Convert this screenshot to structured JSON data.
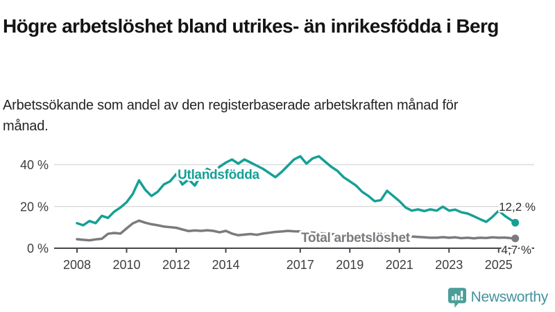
{
  "header": {
    "title": "Högre arbetslöshet bland utrikes- än inrikesfödda i Berg",
    "subtitle": "Arbetssökande som andel av den registerbaserade arbetskraften månad för månad."
  },
  "footer": {
    "brand": "Newsworthy",
    "brand_text_color": "#42939d",
    "brand_icon_color": "#4d9e99"
  },
  "chart_data": {
    "type": "line",
    "unit": "%",
    "grid": true,
    "ylim": [
      0,
      44
    ],
    "colors": {
      "grid": "#dcdcdc",
      "axis": "#45454a",
      "tick_text": "#3d3d3d",
      "value_text": "#2e2e2e"
    },
    "y_ticks": [
      {
        "v": 0,
        "label": "0 %"
      },
      {
        "v": 20,
        "label": "20 %"
      },
      {
        "v": 40,
        "label": "40 %"
      }
    ],
    "x_ticks": [
      {
        "v": 2008,
        "label": "2008"
      },
      {
        "v": 2010,
        "label": "2010"
      },
      {
        "v": 2012,
        "label": "2012"
      },
      {
        "v": 2014,
        "label": "2014"
      },
      {
        "v": 2017,
        "label": "2017"
      },
      {
        "v": 2019,
        "label": "2019"
      },
      {
        "v": 2021,
        "label": "2021"
      },
      {
        "v": 2023,
        "label": "2023"
      },
      {
        "v": 2025,
        "label": "2025"
      }
    ],
    "x": [
      2008.0,
      2008.25,
      2008.5,
      2008.75,
      2009.0,
      2009.25,
      2009.5,
      2009.75,
      2010.0,
      2010.25,
      2010.5,
      2010.75,
      2011.0,
      2011.25,
      2011.5,
      2011.75,
      2012.0,
      2012.25,
      2012.5,
      2012.75,
      2013.0,
      2013.25,
      2013.5,
      2013.75,
      2014.0,
      2014.25,
      2014.5,
      2014.75,
      2015.0,
      2015.25,
      2015.5,
      2015.75,
      2016.0,
      2016.25,
      2016.5,
      2016.75,
      2017.0,
      2017.25,
      2017.5,
      2017.75,
      2018.0,
      2018.25,
      2018.5,
      2018.75,
      2019.0,
      2019.25,
      2019.5,
      2019.75,
      2020.0,
      2020.25,
      2020.5,
      2020.75,
      2021.0,
      2021.25,
      2021.5,
      2021.75,
      2022.0,
      2022.25,
      2022.5,
      2022.75,
      2023.0,
      2023.25,
      2023.5,
      2023.75,
      2024.0,
      2024.25,
      2024.5,
      2024.75,
      2025.0,
      2025.25,
      2025.5,
      2025.67
    ],
    "series": [
      {
        "name": "Utlandsfödda",
        "color": "#14a096",
        "end_label": "12,2 %",
        "end_value": 12.2,
        "values": [
          12.0,
          11.0,
          13.0,
          12.0,
          15.5,
          14.5,
          17.5,
          19.5,
          22.0,
          26.0,
          32.5,
          28.0,
          25.0,
          27.0,
          30.5,
          32.0,
          35.5,
          30.5,
          33.0,
          30.0,
          35.0,
          38.0,
          36.5,
          39.0,
          41.0,
          42.5,
          40.5,
          42.5,
          41.0,
          39.5,
          38.0,
          36.0,
          34.0,
          36.5,
          39.5,
          42.5,
          44.0,
          40.5,
          43.0,
          44.0,
          41.5,
          39.0,
          37.0,
          34.0,
          32.0,
          30.0,
          27.0,
          25.0,
          22.5,
          23.0,
          27.5,
          25.0,
          22.5,
          19.5,
          18.0,
          18.6,
          17.8,
          18.6,
          18.0,
          19.9,
          18.0,
          18.5,
          17.2,
          16.6,
          15.3,
          13.9,
          12.6,
          15.0,
          18.0,
          15.5,
          13.5,
          12.2
        ]
      },
      {
        "name": "Total arbetslöshet",
        "color": "#7a7a7f",
        "end_label": "4,7 %",
        "end_value": 4.7,
        "values": [
          4.3,
          4.0,
          3.8,
          4.2,
          4.5,
          6.9,
          7.3,
          7.0,
          9.5,
          11.9,
          13.2,
          12.2,
          11.5,
          11.0,
          10.4,
          10.1,
          9.8,
          9.0,
          8.2,
          8.5,
          8.3,
          8.6,
          8.3,
          7.6,
          8.3,
          7.0,
          6.2,
          6.5,
          6.8,
          6.4,
          7.0,
          7.4,
          7.8,
          8.0,
          8.3,
          8.1,
          8.0,
          7.7,
          7.5,
          7.2,
          7.0,
          6.8,
          6.6,
          6.5,
          6.6,
          6.4,
          6.3,
          6.2,
          6.4,
          6.7,
          6.9,
          6.5,
          6.2,
          5.9,
          5.6,
          5.4,
          5.2,
          5.0,
          5.0,
          5.3,
          5.0,
          5.2,
          4.8,
          5.0,
          4.7,
          5.0,
          4.9,
          5.2,
          5.0,
          5.1,
          4.8,
          4.7
        ]
      }
    ]
  }
}
